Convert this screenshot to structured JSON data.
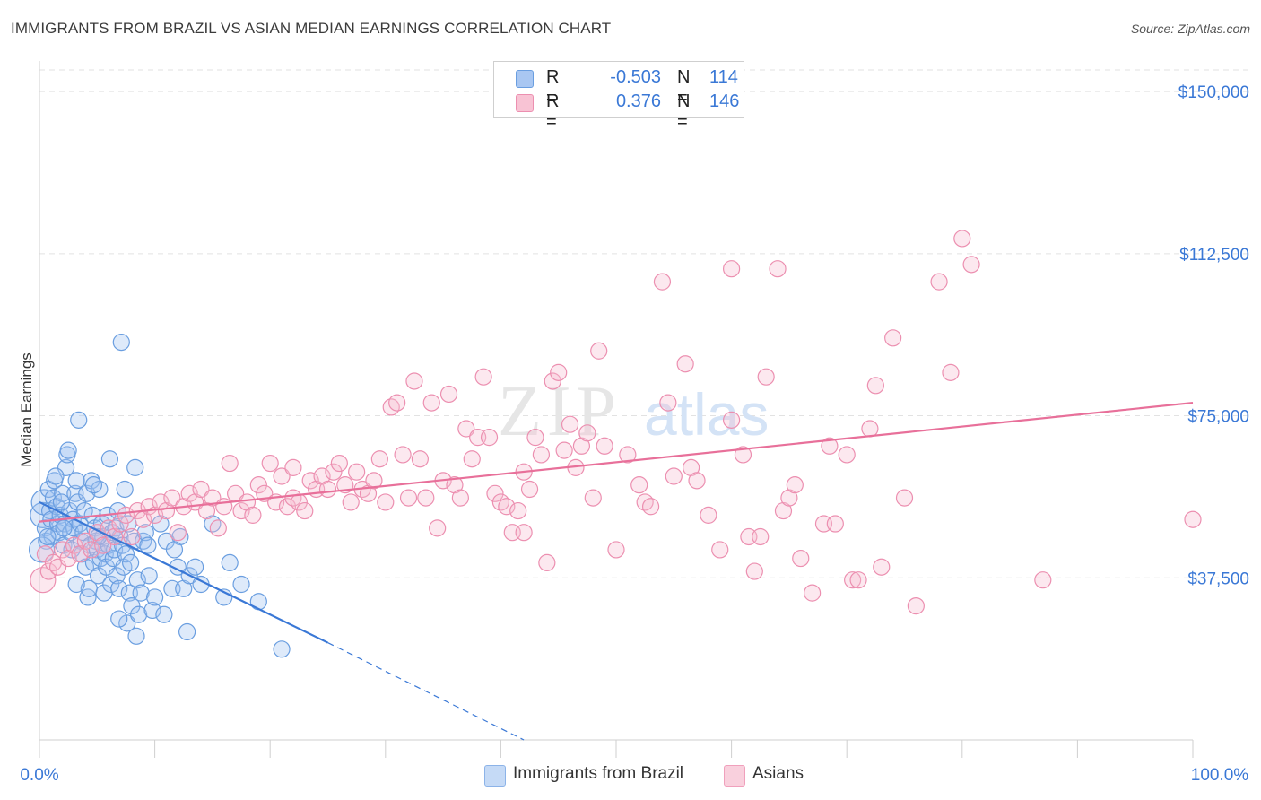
{
  "title": "IMMIGRANTS FROM BRAZIL VS ASIAN MEDIAN EARNINGS CORRELATION CHART",
  "source": "Source: ZipAtlas.com",
  "watermark": {
    "zip": "ZIP",
    "atlas": "atlas"
  },
  "legend": [
    {
      "r_label": "R =",
      "r_value": "-0.503",
      "n_label": "N =",
      "n_value": "114",
      "color": "#a9c7f2",
      "border": "#6a9ee0"
    },
    {
      "r_label": "R =",
      "r_value": "0.376",
      "n_label": "N =",
      "n_value": "146",
      "color": "#f8c3d4",
      "border": "#ec8fb0"
    }
  ],
  "bottom_legend": [
    {
      "label": "Immigrants from Brazil",
      "color": "#c5daf6",
      "border": "#8cb3e8"
    },
    {
      "label": "Asians",
      "color": "#f9d0dd",
      "border": "#f0a0bc"
    }
  ],
  "chart_data": {
    "type": "scatter",
    "xlabel": "",
    "ylabel": "Median Earnings",
    "x_tick_labels": [
      "0.0%",
      "100.0%"
    ],
    "y_tick_labels": [
      "$150,000",
      "$112,500",
      "$75,000",
      "$37,500"
    ],
    "y_ticks": [
      150000,
      112500,
      75000,
      37500
    ],
    "xlim": [
      0,
      100
    ],
    "ylim": [
      0,
      155000
    ],
    "colors": {
      "blue": "#3a78d6",
      "pink": "#e8709a"
    },
    "series": [
      {
        "name": "Immigrants from Brazil",
        "color": "#3a78d6",
        "trend": {
          "x0": 0,
          "y0": 55000,
          "x1": 25,
          "y1": 22500,
          "x_dash_end": 42,
          "y_dash_end": 0
        },
        "points": [
          [
            0.3,
            52000
          ],
          [
            0.4,
            55000
          ],
          [
            0.5,
            49000
          ],
          [
            0.6,
            46000
          ],
          [
            0.8,
            58000
          ],
          [
            0.9,
            53000
          ],
          [
            1.0,
            51000
          ],
          [
            1.1,
            47000
          ],
          [
            1.2,
            56000
          ],
          [
            1.3,
            60000
          ],
          [
            1.5,
            54000
          ],
          [
            1.6,
            50000
          ],
          [
            1.7,
            48000
          ],
          [
            1.8,
            52000
          ],
          [
            2.0,
            57000
          ],
          [
            2.1,
            45000
          ],
          [
            2.2,
            50000
          ],
          [
            2.3,
            63000
          ],
          [
            2.4,
            66000
          ],
          [
            2.5,
            67000
          ],
          [
            2.6,
            53000
          ],
          [
            2.7,
            48000
          ],
          [
            2.8,
            44000
          ],
          [
            2.9,
            51000
          ],
          [
            3.0,
            49000
          ],
          [
            3.1,
            57000
          ],
          [
            3.2,
            60000
          ],
          [
            3.3,
            55000
          ],
          [
            3.4,
            74000
          ],
          [
            3.5,
            50000
          ],
          [
            3.6,
            46000
          ],
          [
            3.7,
            43000
          ],
          [
            3.8,
            48000
          ],
          [
            3.9,
            53000
          ],
          [
            4.0,
            40000
          ],
          [
            4.1,
            57000
          ],
          [
            4.2,
            33000
          ],
          [
            4.3,
            35000
          ],
          [
            4.4,
            45000
          ],
          [
            4.5,
            60000
          ],
          [
            4.6,
            52000
          ],
          [
            4.7,
            41000
          ],
          [
            4.8,
            49000
          ],
          [
            4.9,
            46000
          ],
          [
            5.0,
            44000
          ],
          [
            5.1,
            38000
          ],
          [
            5.2,
            58000
          ],
          [
            5.3,
            42000
          ],
          [
            5.4,
            50000
          ],
          [
            5.5,
            47000
          ],
          [
            5.6,
            34000
          ],
          [
            5.7,
            43000
          ],
          [
            5.8,
            40000
          ],
          [
            5.9,
            52000
          ],
          [
            6.0,
            45000
          ],
          [
            6.1,
            65000
          ],
          [
            6.2,
            36000
          ],
          [
            6.3,
            48000
          ],
          [
            6.4,
            42000
          ],
          [
            6.5,
            44000
          ],
          [
            6.6,
            49000
          ],
          [
            6.7,
            38000
          ],
          [
            6.8,
            53000
          ],
          [
            6.9,
            35000
          ],
          [
            7.0,
            47000
          ],
          [
            7.1,
            92000
          ],
          [
            7.2,
            45000
          ],
          [
            7.3,
            40000
          ],
          [
            7.4,
            58000
          ],
          [
            7.5,
            43000
          ],
          [
            7.6,
            27000
          ],
          [
            7.7,
            50000
          ],
          [
            7.8,
            34000
          ],
          [
            7.9,
            41000
          ],
          [
            8.0,
            31000
          ],
          [
            8.2,
            46000
          ],
          [
            8.3,
            63000
          ],
          [
            8.4,
            24000
          ],
          [
            8.5,
            37000
          ],
          [
            8.6,
            29000
          ],
          [
            8.8,
            34000
          ],
          [
            9.0,
            46000
          ],
          [
            9.2,
            48000
          ],
          [
            9.5,
            38000
          ],
          [
            9.8,
            30000
          ],
          [
            10.0,
            33000
          ],
          [
            10.5,
            50000
          ],
          [
            10.8,
            29000
          ],
          [
            11.0,
            46000
          ],
          [
            11.5,
            35000
          ],
          [
            12.0,
            40000
          ],
          [
            12.2,
            47000
          ],
          [
            12.5,
            35000
          ],
          [
            12.8,
            25000
          ],
          [
            13.0,
            38000
          ],
          [
            13.5,
            40000
          ],
          [
            14.0,
            36000
          ],
          [
            15.0,
            50000
          ],
          [
            16.0,
            33000
          ],
          [
            16.5,
            41000
          ],
          [
            17.5,
            36000
          ],
          [
            19.0,
            32000
          ],
          [
            21.0,
            21000
          ],
          [
            0.2,
            44000
          ],
          [
            0.7,
            47000
          ],
          [
            1.4,
            61000
          ],
          [
            1.9,
            55000
          ],
          [
            3.2,
            36000
          ],
          [
            4.7,
            59000
          ],
          [
            6.9,
            28000
          ],
          [
            9.4,
            45000
          ],
          [
            11.7,
            44000
          ],
          [
            2.1,
            49000
          ],
          [
            5.1,
            47000
          ]
        ]
      },
      {
        "name": "Asians",
        "color": "#e8709a",
        "trend": {
          "x0": 0,
          "y0": 50500,
          "x1": 100,
          "y1": 78000
        },
        "points": [
          [
            0.3,
            37000
          ],
          [
            0.5,
            43000
          ],
          [
            0.8,
            39000
          ],
          [
            1.2,
            41000
          ],
          [
            1.6,
            40000
          ],
          [
            2.0,
            44000
          ],
          [
            2.5,
            42000
          ],
          [
            3.0,
            45000
          ],
          [
            3.5,
            43000
          ],
          [
            4.0,
            46000
          ],
          [
            4.5,
            44000
          ],
          [
            5.0,
            48000
          ],
          [
            5.5,
            45000
          ],
          [
            6.0,
            49000
          ],
          [
            6.5,
            47000
          ],
          [
            7.0,
            50000
          ],
          [
            7.5,
            52000
          ],
          [
            8.0,
            47000
          ],
          [
            8.5,
            53000
          ],
          [
            9.0,
            51000
          ],
          [
            9.5,
            54000
          ],
          [
            10.0,
            52000
          ],
          [
            10.5,
            55000
          ],
          [
            11.0,
            53000
          ],
          [
            11.5,
            56000
          ],
          [
            12.0,
            48000
          ],
          [
            12.5,
            54000
          ],
          [
            13.0,
            57000
          ],
          [
            13.5,
            55000
          ],
          [
            14.0,
            58000
          ],
          [
            14.5,
            53000
          ],
          [
            15.0,
            56000
          ],
          [
            15.5,
            49000
          ],
          [
            16.0,
            54000
          ],
          [
            16.5,
            64000
          ],
          [
            17.0,
            57000
          ],
          [
            17.5,
            53000
          ],
          [
            18.0,
            55000
          ],
          [
            18.5,
            52000
          ],
          [
            19.0,
            59000
          ],
          [
            19.5,
            57000
          ],
          [
            20.0,
            64000
          ],
          [
            20.5,
            55000
          ],
          [
            21.0,
            61000
          ],
          [
            21.5,
            54000
          ],
          [
            22.0,
            56000
          ],
          [
            22.5,
            55000
          ],
          [
            23.0,
            53000
          ],
          [
            23.5,
            60000
          ],
          [
            24.0,
            58000
          ],
          [
            24.5,
            61000
          ],
          [
            25.0,
            58000
          ],
          [
            25.5,
            62000
          ],
          [
            26.0,
            64000
          ],
          [
            26.5,
            59000
          ],
          [
            27.0,
            55000
          ],
          [
            27.5,
            62000
          ],
          [
            28.0,
            58000
          ],
          [
            28.5,
            57000
          ],
          [
            29.0,
            60000
          ],
          [
            29.5,
            65000
          ],
          [
            30.0,
            55000
          ],
          [
            30.5,
            77000
          ],
          [
            31.0,
            78000
          ],
          [
            31.5,
            66000
          ],
          [
            32.0,
            56000
          ],
          [
            32.5,
            83000
          ],
          [
            33.0,
            65000
          ],
          [
            33.5,
            56000
          ],
          [
            34.0,
            78000
          ],
          [
            34.5,
            49000
          ],
          [
            35.0,
            60000
          ],
          [
            35.5,
            80000
          ],
          [
            36.0,
            59000
          ],
          [
            36.5,
            56000
          ],
          [
            37.0,
            72000
          ],
          [
            37.5,
            65000
          ],
          [
            38.0,
            70000
          ],
          [
            38.5,
            84000
          ],
          [
            39.0,
            70000
          ],
          [
            39.5,
            57000
          ],
          [
            40.0,
            55000
          ],
          [
            40.5,
            54000
          ],
          [
            41.0,
            48000
          ],
          [
            41.5,
            53000
          ],
          [
            42.0,
            62000
          ],
          [
            42.5,
            58000
          ],
          [
            43.0,
            70000
          ],
          [
            43.5,
            66000
          ],
          [
            44.0,
            41000
          ],
          [
            44.5,
            83000
          ],
          [
            45.0,
            85000
          ],
          [
            45.5,
            67000
          ],
          [
            46.0,
            73000
          ],
          [
            46.5,
            63000
          ],
          [
            47.0,
            68000
          ],
          [
            47.5,
            71000
          ],
          [
            48.0,
            56000
          ],
          [
            48.5,
            90000
          ],
          [
            49.0,
            68000
          ],
          [
            50.0,
            44000
          ],
          [
            51.0,
            66000
          ],
          [
            52.0,
            59000
          ],
          [
            52.5,
            55000
          ],
          [
            53.0,
            54000
          ],
          [
            54.0,
            106000
          ],
          [
            54.5,
            78000
          ],
          [
            55.0,
            61000
          ],
          [
            56.0,
            87000
          ],
          [
            56.5,
            63000
          ],
          [
            57.0,
            60000
          ],
          [
            58.0,
            52000
          ],
          [
            59.0,
            44000
          ],
          [
            60.0,
            74000
          ],
          [
            61.0,
            66000
          ],
          [
            61.5,
            47000
          ],
          [
            62.0,
            39000
          ],
          [
            62.5,
            47000
          ],
          [
            63.0,
            84000
          ],
          [
            64.0,
            109000
          ],
          [
            64.5,
            53000
          ],
          [
            65.0,
            56000
          ],
          [
            65.5,
            59000
          ],
          [
            66.0,
            42000
          ],
          [
            67.0,
            34000
          ],
          [
            68.0,
            50000
          ],
          [
            68.5,
            68000
          ],
          [
            69.0,
            50000
          ],
          [
            70.0,
            66000
          ],
          [
            70.5,
            37000
          ],
          [
            71.0,
            37000
          ],
          [
            72.0,
            72000
          ],
          [
            72.5,
            82000
          ],
          [
            73.0,
            40000
          ],
          [
            74.0,
            93000
          ],
          [
            75.0,
            56000
          ],
          [
            76.0,
            31000
          ],
          [
            78.0,
            106000
          ],
          [
            79.0,
            85000
          ],
          [
            80.0,
            116000
          ],
          [
            80.8,
            110000
          ],
          [
            87.0,
            37000
          ],
          [
            100.0,
            51000
          ],
          [
            60.0,
            109000
          ],
          [
            42.0,
            48000
          ],
          [
            22.0,
            63000
          ]
        ]
      }
    ]
  }
}
